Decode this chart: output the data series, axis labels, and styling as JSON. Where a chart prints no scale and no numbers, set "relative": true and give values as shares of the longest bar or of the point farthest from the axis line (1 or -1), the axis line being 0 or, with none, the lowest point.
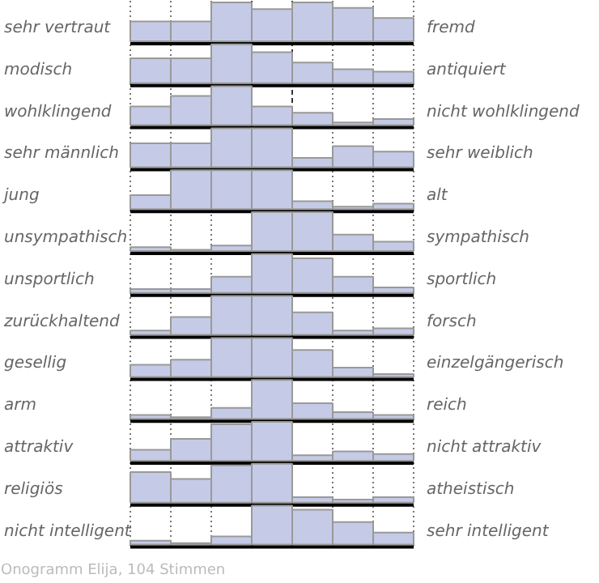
{
  "chart_data": [
    {
      "type": "bar",
      "ylabel": "sehr vertraut",
      "y2label": "fremd",
      "relative": true,
      "color": "#c5cbe6",
      "categories": [
        null,
        null,
        null,
        null,
        null,
        null,
        null
      ],
      "values": [
        0.51,
        0.51,
        1,
        0.83,
        1,
        0.86,
        0.6
      ]
    },
    {
      "type": "bar",
      "ylabel": "modisch",
      "y2label": "antiquiert",
      "relative": true,
      "color": "#c5cbe6",
      "categories": [
        null,
        null,
        null,
        null,
        null,
        null,
        null
      ],
      "values": [
        0.64,
        0.64,
        1,
        0.8,
        0.53,
        0.36,
        0.3
      ]
    },
    {
      "type": "bar",
      "ylabel": "wohlklingend",
      "y2label": "nicht wohlklingend",
      "relative": true,
      "color": "#c5cbe6",
      "categories": [
        null,
        null,
        null,
        null,
        null,
        null,
        null
      ],
      "values": [
        0.48,
        0.75,
        1,
        0.48,
        0.32,
        0.07,
        0.16
      ]
    },
    {
      "type": "bar",
      "ylabel": "sehr männlich",
      "y2label": "sehr weiblich",
      "relative": true,
      "color": "#c5cbe6",
      "categories": [
        null,
        null,
        null,
        null,
        null,
        null,
        null
      ],
      "values": [
        0.61,
        0.61,
        1,
        1,
        0.24,
        0.54,
        0.4
      ]
    },
    {
      "type": "bar",
      "ylabel": "jung",
      "y2label": "alt",
      "relative": true,
      "color": "#c5cbe6",
      "categories": [
        null,
        null,
        null,
        null,
        null,
        null,
        null
      ],
      "values": [
        0.36,
        1,
        1,
        1,
        0.2,
        0.06,
        0.14
      ]
    },
    {
      "type": "bar",
      "ylabel": "unsympathisch",
      "y2label": "sympathisch",
      "relative": true,
      "color": "#c5cbe6",
      "categories": [
        null,
        null,
        null,
        null,
        null,
        null,
        null
      ],
      "values": [
        0.1,
        0.03,
        0.14,
        1,
        1,
        0.42,
        0.24
      ]
    },
    {
      "type": "bar",
      "ylabel": "unsportlich",
      "y2label": "sportlich",
      "relative": true,
      "color": "#c5cbe6",
      "categories": [
        null,
        null,
        null,
        null,
        null,
        null,
        null
      ],
      "values": [
        0.1,
        0.1,
        0.42,
        1,
        0.89,
        0.42,
        0.14
      ]
    },
    {
      "type": "bar",
      "ylabel": "zurückhaltend",
      "y2label": "forsch",
      "relative": true,
      "color": "#c5cbe6",
      "categories": [
        null,
        null,
        null,
        null,
        null,
        null,
        null
      ],
      "values": [
        0.11,
        0.46,
        1,
        1,
        0.58,
        0.11,
        0.17
      ]
    },
    {
      "type": "bar",
      "ylabel": "gesellig",
      "y2label": "einzelgängerisch",
      "relative": true,
      "color": "#c5cbe6",
      "categories": [
        null,
        null,
        null,
        null,
        null,
        null,
        null
      ],
      "values": [
        0.31,
        0.44,
        1,
        1,
        0.69,
        0.24,
        0.07
      ]
    },
    {
      "type": "bar",
      "ylabel": "arm",
      "y2label": "reich",
      "relative": true,
      "color": "#c5cbe6",
      "categories": [
        null,
        null,
        null,
        null,
        null,
        null,
        null
      ],
      "values": [
        0.1,
        0.04,
        0.28,
        1,
        0.4,
        0.17,
        0.1
      ]
    },
    {
      "type": "bar",
      "ylabel": "attraktiv",
      "y2label": "nicht attraktiv",
      "relative": true,
      "color": "#c5cbe6",
      "categories": [
        null,
        null,
        null,
        null,
        null,
        null,
        null
      ],
      "values": [
        0.28,
        0.56,
        0.94,
        1,
        0.14,
        0.24,
        0.17
      ]
    },
    {
      "type": "bar",
      "ylabel": "religiös",
      "y2label": "atheistisch",
      "relative": true,
      "color": "#c5cbe6",
      "categories": [
        null,
        null,
        null,
        null,
        null,
        null,
        null
      ],
      "values": [
        0.79,
        0.61,
        0.96,
        1,
        0.14,
        0.08,
        0.14
      ]
    },
    {
      "type": "bar",
      "ylabel": "nicht intelligent",
      "y2label": "sehr intelligent",
      "relative": true,
      "color": "#c5cbe6",
      "categories": [
        null,
        null,
        null,
        null,
        null,
        null,
        null
      ],
      "values": [
        0.1,
        0.04,
        0.21,
        1,
        0.9,
        0.58,
        0.31
      ],
      "annotations": [
        "Onogramm Elija, 104 Stimmen"
      ]
    }
  ]
}
